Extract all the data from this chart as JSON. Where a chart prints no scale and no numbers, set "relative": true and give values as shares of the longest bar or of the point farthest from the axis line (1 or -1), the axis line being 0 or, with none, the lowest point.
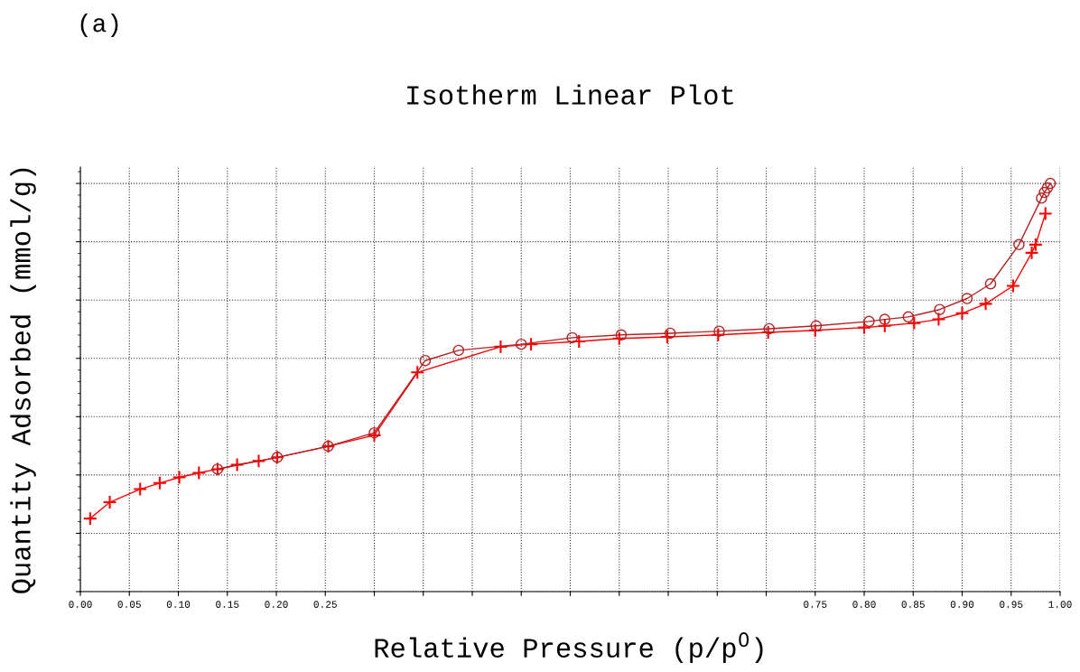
{
  "chart_data": {
    "type": "line",
    "title": "Isotherm Linear Plot",
    "xlabel": "Relative Pressure (p/p$^{0}$)",
    "ylabel": "Quantity Adsorbed (mmol/g)",
    "annotations": [
      "(a)"
    ],
    "relative": true,
    "xlim": [
      0,
      1
    ],
    "xticks": [
      {
        "value": 0,
        "label": "0.00"
      },
      {
        "value": 0.05,
        "label": "0.05"
      },
      {
        "value": 0.1,
        "label": "0.10"
      },
      {
        "value": 0.15,
        "label": "0.15"
      },
      {
        "value": 0.2,
        "label": "0.20"
      },
      {
        "value": 0.25,
        "label": "0.25"
      },
      {
        "value": 0.3,
        "label": null
      },
      {
        "value": 0.35,
        "label": null
      },
      {
        "value": 0.4,
        "label": null
      },
      {
        "value": 0.45,
        "label": null
      },
      {
        "value": 0.5,
        "label": null
      },
      {
        "value": 0.55,
        "label": null
      },
      {
        "value": 0.6,
        "label": null
      },
      {
        "value": 0.65,
        "label": null
      },
      {
        "value": 0.7,
        "label": null
      },
      {
        "value": 0.75,
        "label": "0.75"
      },
      {
        "value": 0.8,
        "label": "0.80"
      },
      {
        "value": 0.85,
        "label": "0.85"
      },
      {
        "value": 0.9,
        "label": "0.90"
      },
      {
        "value": 0.95,
        "label": "0.95"
      },
      {
        "value": 1,
        "label": "1.00"
      }
    ],
    "grid": true,
    "tick_labels": "x",
    "line_style": "solid",
    "series": [
      {
        "color": "#ff0000",
        "marker": "cross",
        "x": [
          0.01,
          0.03,
          0.061,
          0.081,
          0.101,
          0.121,
          0.14,
          0.16,
          0.182,
          0.201,
          0.253,
          0.3,
          0.344,
          0.429,
          0.46,
          0.509,
          0.55,
          0.599,
          0.651,
          0.702,
          0.75,
          0.8,
          0.821,
          0.851,
          0.876,
          0.9,
          0.924,
          0.952,
          0.971,
          0.975,
          0.985
        ],
        "values": [
          0.179,
          0.219,
          0.251,
          0.266,
          0.28,
          0.291,
          0.3,
          0.311,
          0.32,
          0.329,
          0.356,
          0.383,
          0.537,
          0.6,
          0.606,
          0.613,
          0.62,
          0.624,
          0.629,
          0.635,
          0.64,
          0.647,
          0.651,
          0.658,
          0.667,
          0.682,
          0.705,
          0.749,
          0.83,
          0.85,
          0.926
        ]
      },
      {
        "color": "#b22222",
        "marker": "circle",
        "x": [
          0.99,
          0.987,
          0.984,
          0.981,
          0.958,
          0.929,
          0.905,
          0.877,
          0.845,
          0.821,
          0.805,
          0.751,
          0.703,
          0.652,
          0.602,
          0.552,
          0.502,
          0.45,
          0.386,
          0.352,
          0.3,
          0.253,
          0.201,
          0.14
        ],
        "values": [
          1.0,
          0.989,
          0.978,
          0.964,
          0.85,
          0.754,
          0.718,
          0.691,
          0.673,
          0.667,
          0.662,
          0.651,
          0.644,
          0.638,
          0.633,
          0.629,
          0.622,
          0.606,
          0.591,
          0.566,
          0.389,
          0.356,
          0.329,
          0.3
        ]
      }
    ]
  }
}
